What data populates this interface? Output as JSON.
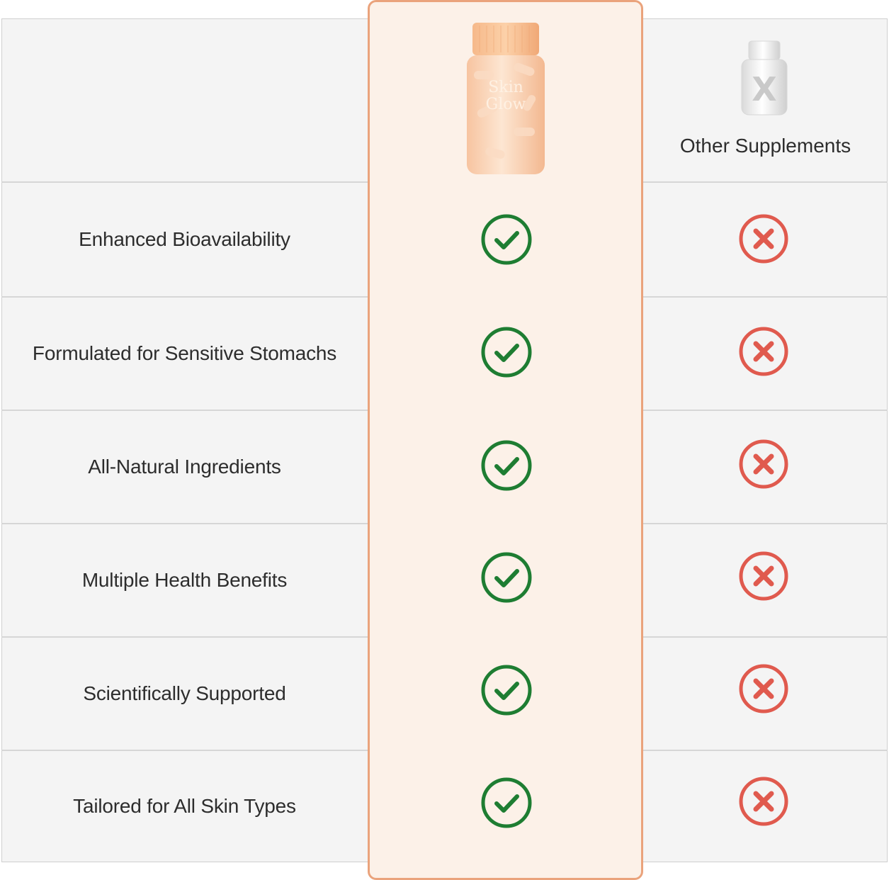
{
  "columns": {
    "competitor_label": "Other Supplements"
  },
  "product": {
    "bottle_text_line1": "Skin",
    "bottle_text_line2": "Glow"
  },
  "features": [
    {
      "label": "Enhanced Bioavailability",
      "ours": true,
      "others": false
    },
    {
      "label": "Formulated for Sensitive Stomachs",
      "ours": true,
      "others": false
    },
    {
      "label": "All-Natural Ingredients",
      "ours": true,
      "others": false
    },
    {
      "label": "Multiple Health Benefits",
      "ours": true,
      "others": false
    },
    {
      "label": "Scientifically Supported",
      "ours": true,
      "others": false
    },
    {
      "label": "Tailored for All Skin Types",
      "ours": true,
      "others": false
    }
  ],
  "icons": {
    "check": "check-circle-icon",
    "cross": "x-circle-icon"
  },
  "colors": {
    "check_green": "#1e7d32",
    "cross_red": "#e05a4e",
    "highlight_bg": "#fcf1e8",
    "highlight_border": "#eaa37c",
    "table_bg": "#f4f4f4"
  }
}
